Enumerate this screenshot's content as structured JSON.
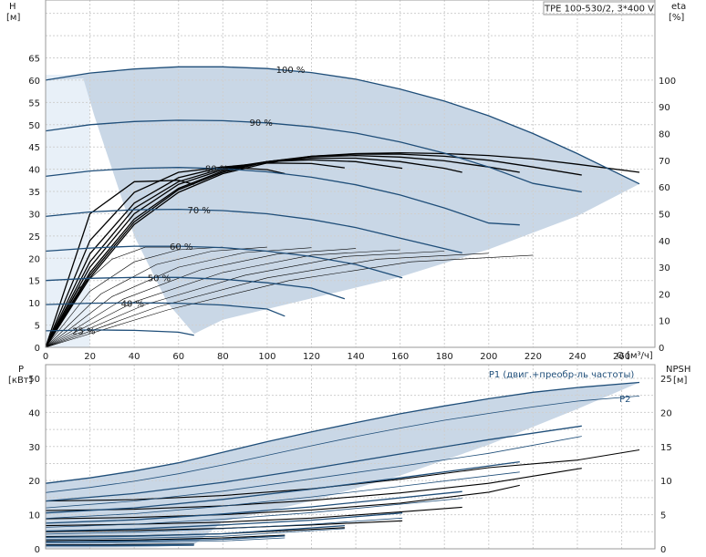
{
  "chart_data": [
    {
      "type": "line",
      "title": "TPE 100-530/2, 3*400 V",
      "xlabel": "Q [м³/ч]",
      "ylabel": "H\n[м]",
      "ylabel_right": "eta\n[%]",
      "xlim": [
        0,
        275
      ],
      "ylim": [
        0,
        78
      ],
      "y2lim": [
        0,
        130
      ],
      "x_ticks": [
        "0",
        "20",
        "40",
        "60",
        "80",
        "100",
        "120",
        "140",
        "160",
        "180",
        "200",
        "220",
        "240",
        "260"
      ],
      "y_ticks": [
        "0",
        "5",
        "10",
        "15",
        "20",
        "25",
        "30",
        "35",
        "40",
        "45",
        "50",
        "55",
        "60",
        "65"
      ],
      "y2_ticks": [
        "0",
        "10",
        "20",
        "30",
        "40",
        "50",
        "60",
        "70",
        "80",
        "90",
        "100"
      ],
      "grid": true,
      "operating_area": {
        "upper_x": [
          0,
          20,
          40,
          60,
          80,
          100,
          120,
          140,
          160,
          180,
          200,
          220,
          240,
          268
        ],
        "upper_y": [
          60,
          61.6,
          62.5,
          63.0,
          63.0,
          62.6,
          61.7,
          60.2,
          58.0,
          55.3,
          52.0,
          48.0,
          43.5,
          36.7
        ],
        "lower_x": [
          268,
          240,
          200,
          160,
          120,
          100,
          80,
          67,
          55,
          40,
          30,
          22,
          17
        ],
        "lower_y": [
          36.7,
          29.5,
          22.0,
          15.8,
          11.0,
          8.6,
          6.2,
          3.0,
          10.0,
          25.0,
          40.0,
          52.0,
          60.4
        ]
      },
      "head_curves": [
        {
          "name": "100 %",
          "label_x": 104,
          "x": [
            0,
            20,
            40,
            60,
            80,
            100,
            120,
            140,
            160,
            180,
            200,
            220,
            240,
            268
          ],
          "y": [
            60.0,
            61.6,
            62.5,
            63.0,
            63.0,
            62.6,
            61.7,
            60.2,
            58.0,
            55.3,
            52.0,
            48.0,
            43.5,
            36.7
          ]
        },
        {
          "name": "90 %",
          "label_x": 92,
          "x": [
            0,
            20,
            40,
            60,
            80,
            100,
            120,
            140,
            160,
            180,
            200,
            220,
            242
          ],
          "y": [
            48.6,
            50.0,
            50.7,
            51.0,
            50.9,
            50.4,
            49.5,
            48.1,
            46.1,
            43.6,
            40.5,
            36.8,
            34.9
          ]
        },
        {
          "name": "80 %",
          "label_x": 72,
          "x": [
            0,
            20,
            40,
            60,
            80,
            100,
            120,
            140,
            160,
            180,
            200,
            214
          ],
          "y": [
            38.4,
            39.6,
            40.2,
            40.4,
            40.1,
            39.4,
            38.2,
            36.5,
            34.2,
            31.3,
            27.9,
            27.5
          ]
        },
        {
          "name": "70 %",
          "label_x": 64,
          "x": [
            0,
            20,
            40,
            60,
            80,
            100,
            120,
            140,
            160,
            188
          ],
          "y": [
            29.4,
            30.4,
            30.9,
            31.0,
            30.7,
            30.0,
            28.7,
            26.9,
            24.5,
            21.2
          ]
        },
        {
          "name": "60 %",
          "label_x": 56,
          "x": [
            0,
            20,
            40,
            60,
            80,
            100,
            120,
            140,
            161
          ],
          "y": [
            21.6,
            22.3,
            22.7,
            22.7,
            22.4,
            21.6,
            20.4,
            18.6,
            15.6
          ]
        },
        {
          "name": "50 %",
          "label_x": 46,
          "x": [
            0,
            20,
            40,
            60,
            80,
            100,
            120,
            135
          ],
          "y": [
            15.0,
            15.5,
            15.7,
            15.7,
            15.3,
            14.5,
            13.3,
            10.9
          ]
        },
        {
          "name": "40 %",
          "label_x": 34,
          "x": [
            0,
            20,
            40,
            60,
            80,
            100,
            108
          ],
          "y": [
            9.6,
            9.9,
            10.0,
            9.9,
            9.5,
            8.6,
            7.0
          ]
        },
        {
          "name": "25 %",
          "label_x": 12,
          "x": [
            0,
            20,
            40,
            60,
            67
          ],
          "y": [
            3.7,
            3.9,
            3.8,
            3.4,
            2.7
          ]
        }
      ],
      "efficiency_curves": [
        {
          "x": [
            0,
            20,
            40,
            60,
            80,
            100,
            120,
            140,
            160,
            180,
            200,
            220,
            240,
            268
          ],
          "y": [
            0,
            26,
            46,
            58,
            65,
            69,
            71.5,
            72.5,
            72.8,
            72.5,
            71.8,
            70.5,
            68.5,
            65.5
          ]
        },
        {
          "x": [
            0,
            20,
            40,
            60,
            80,
            100,
            120,
            140,
            160,
            180,
            200,
            220,
            242
          ],
          "y": [
            0,
            27,
            47,
            59,
            65.5,
            69.5,
            71.5,
            72.3,
            72.3,
            71.5,
            70.0,
            67.5,
            64.5
          ]
        },
        {
          "x": [
            0,
            20,
            40,
            60,
            80,
            100,
            120,
            140,
            160,
            180,
            200,
            214
          ],
          "y": [
            0,
            28,
            48,
            59.5,
            66,
            69.5,
            71.3,
            71.8,
            71.2,
            69.8,
            67.5,
            65.5
          ]
        },
        {
          "x": [
            0,
            20,
            40,
            60,
            80,
            100,
            120,
            140,
            160,
            180,
            188
          ],
          "y": [
            0,
            30,
            50,
            61,
            66.5,
            69.5,
            70.8,
            70.8,
            69.5,
            67.0,
            65.5
          ]
        },
        {
          "x": [
            0,
            20,
            40,
            60,
            80,
            100,
            120,
            140,
            161
          ],
          "y": [
            0,
            32,
            52,
            62,
            67,
            69.5,
            70.2,
            69.5,
            67.0
          ]
        },
        {
          "x": [
            0,
            20,
            40,
            60,
            80,
            100,
            120,
            135
          ],
          "y": [
            0,
            35,
            54,
            63.5,
            67.5,
            69,
            68.8,
            67.2
          ]
        },
        {
          "x": [
            0,
            20,
            40,
            60,
            80,
            100,
            108
          ],
          "y": [
            0,
            40,
            58,
            65.5,
            67.5,
            66.5,
            65.0
          ]
        },
        {
          "x": [
            0,
            20,
            40,
            60,
            67
          ],
          "y": [
            0,
            50,
            62,
            62.5,
            61.0
          ]
        }
      ],
      "system_curves": [
        {
          "x": [
            0,
            15,
            30,
            45,
            60
          ],
          "y": [
            0,
            22,
            33,
            37.5,
            37.5
          ]
        },
        {
          "x": [
            0,
            20,
            40,
            60,
            80
          ],
          "y": [
            0,
            21,
            32,
            36.5,
            37.5
          ]
        },
        {
          "x": [
            0,
            25,
            50,
            75,
            100
          ],
          "y": [
            0,
            20,
            31,
            36,
            37.5
          ]
        },
        {
          "x": [
            0,
            30,
            60,
            90,
            120
          ],
          "y": [
            0,
            19,
            30,
            35.5,
            37.3
          ]
        },
        {
          "x": [
            0,
            35,
            70,
            105,
            140
          ],
          "y": [
            0,
            18,
            29,
            35,
            37
          ]
        },
        {
          "x": [
            0,
            40,
            80,
            120,
            160
          ],
          "y": [
            0,
            17,
            28,
            34.5,
            36.5
          ]
        },
        {
          "x": [
            0,
            45,
            90,
            135,
            180
          ],
          "y": [
            0,
            16,
            27,
            34,
            36
          ]
        },
        {
          "x": [
            0,
            50,
            100,
            150,
            200
          ],
          "y": [
            0,
            15,
            26,
            33,
            35.2
          ]
        },
        {
          "x": [
            0,
            55,
            110,
            165,
            220
          ],
          "y": [
            0,
            14,
            25,
            32,
            34.5
          ]
        }
      ]
    },
    {
      "type": "line",
      "xlabel": "",
      "ylabel": "P\n[кВт]",
      "ylabel_right": "NPSH\n[м]",
      "xlim": [
        0,
        275
      ],
      "ylim": [
        0,
        54
      ],
      "y2lim": [
        0,
        27
      ],
      "y_ticks": [
        "0",
        "10",
        "20",
        "30",
        "40",
        "50"
      ],
      "y2_ticks": [
        "0",
        "5",
        "10",
        "15",
        "20",
        "25"
      ],
      "grid": true,
      "series_labels": [
        {
          "text": "P1 (двиг.+преобр-ль частоты)",
          "x": 200,
          "y": 50.2
        },
        {
          "text": "P2",
          "x": 259,
          "y": 43.0
        }
      ],
      "operating_area": {
        "upper_x": [
          0,
          20,
          40,
          60,
          80,
          100,
          120,
          140,
          160,
          180,
          200,
          220,
          240,
          268
        ],
        "upper_y": [
          19.2,
          20.8,
          22.8,
          25.2,
          28.3,
          31.4,
          34.3,
          37.0,
          39.6,
          41.9,
          44.0,
          45.9,
          47.3,
          48.8
        ],
        "lower_x": [
          268,
          240,
          200,
          160,
          120,
          80,
          67,
          50,
          20,
          0
        ],
        "lower_y": [
          48.8,
          41.0,
          30.5,
          21.5,
          14.0,
          8.0,
          1.2,
          0.5,
          0.3,
          0.3
        ]
      },
      "p1_curves": [
        {
          "x": [
            0,
            20,
            40,
            60,
            80,
            100,
            120,
            140,
            160,
            180,
            200,
            220,
            240,
            268
          ],
          "y": [
            19.2,
            20.8,
            22.8,
            25.2,
            28.3,
            31.4,
            34.3,
            37.0,
            39.6,
            41.9,
            44.0,
            45.9,
            47.3,
            48.8
          ]
        },
        {
          "x": [
            0,
            40,
            80,
            120,
            160,
            200,
            242
          ],
          "y": [
            14.0,
            16.2,
            19.5,
            23.5,
            27.8,
            32.0,
            36.0
          ]
        },
        {
          "x": [
            0,
            40,
            80,
            120,
            160,
            214
          ],
          "y": [
            10.5,
            12.0,
            14.5,
            17.5,
            20.8,
            25.5
          ]
        },
        {
          "x": [
            0,
            40,
            80,
            120,
            188
          ],
          "y": [
            7.5,
            8.5,
            10.2,
            12.3,
            16.8
          ]
        },
        {
          "x": [
            0,
            40,
            80,
            120,
            161
          ],
          "y": [
            5.2,
            5.8,
            7.0,
            8.4,
            10.5
          ]
        },
        {
          "x": [
            0,
            40,
            80,
            135
          ],
          "y": [
            3.4,
            3.7,
            4.4,
            6.8
          ]
        },
        {
          "x": [
            0,
            40,
            80,
            108
          ],
          "y": [
            2.1,
            2.3,
            2.8,
            3.8
          ]
        },
        {
          "x": [
            0,
            30,
            67
          ],
          "y": [
            1.0,
            1.0,
            1.3
          ]
        }
      ],
      "p2_curves": [
        {
          "x": [
            0,
            20,
            40,
            60,
            80,
            100,
            120,
            140,
            160,
            180,
            200,
            220,
            240,
            268
          ],
          "y": [
            16.5,
            18.0,
            19.8,
            22.0,
            24.6,
            27.4,
            30.2,
            32.9,
            35.4,
            37.7,
            39.7,
            41.6,
            43.3,
            44.8
          ]
        },
        {
          "x": [
            0,
            40,
            80,
            120,
            160,
            200,
            242
          ],
          "y": [
            12.0,
            14.0,
            16.9,
            20.5,
            24.2,
            28.0,
            33.0
          ]
        },
        {
          "x": [
            0,
            40,
            80,
            120,
            160,
            214
          ],
          "y": [
            8.9,
            10.3,
            12.5,
            15.2,
            18.3,
            22.5
          ]
        },
        {
          "x": [
            0,
            40,
            80,
            120,
            188
          ],
          "y": [
            6.3,
            7.2,
            8.7,
            10.6,
            14.8
          ]
        },
        {
          "x": [
            0,
            40,
            80,
            120,
            161
          ],
          "y": [
            4.3,
            4.9,
            5.9,
            7.2,
            9.0
          ]
        },
        {
          "x": [
            0,
            40,
            80,
            135
          ],
          "y": [
            2.8,
            3.1,
            3.7,
            5.9
          ]
        },
        {
          "x": [
            0,
            40,
            80,
            108
          ],
          "y": [
            1.7,
            1.9,
            2.3,
            3.2
          ]
        },
        {
          "x": [
            0,
            30,
            67
          ],
          "y": [
            0.8,
            0.8,
            1.0
          ]
        }
      ],
      "npsh_curves": [
        {
          "x": [
            0,
            40,
            80,
            120,
            160,
            200,
            240,
            268
          ],
          "y": [
            7.0,
            7.2,
            7.8,
            8.8,
            10.2,
            11.9,
            13.0,
            14.5
          ]
        },
        {
          "x": [
            0,
            40,
            80,
            120,
            160,
            200,
            242
          ],
          "y": [
            5.6,
            5.8,
            6.3,
            7.1,
            8.2,
            9.6,
            11.8
          ]
        },
        {
          "x": [
            0,
            40,
            80,
            120,
            160,
            200,
            214
          ],
          "y": [
            4.4,
            4.6,
            5.0,
            5.7,
            6.7,
            8.3,
            9.3
          ]
        },
        {
          "x": [
            0,
            40,
            80,
            120,
            160,
            188
          ],
          "y": [
            3.4,
            3.6,
            3.9,
            4.5,
            5.4,
            6.1
          ]
        },
        {
          "x": [
            0,
            40,
            80,
            120,
            161
          ],
          "y": [
            2.5,
            2.7,
            3.0,
            3.5,
            4.1
          ]
        },
        {
          "x": [
            0,
            40,
            80,
            135
          ],
          "y": [
            1.8,
            1.9,
            2.2,
            3.1
          ]
        },
        {
          "x": [
            0,
            40,
            80,
            108
          ],
          "y": [
            1.2,
            1.3,
            1.6,
            2.0
          ]
        },
        {
          "x": [
            0,
            30,
            67
          ],
          "y": [
            0.6,
            0.6,
            0.7
          ]
        }
      ]
    }
  ],
  "colors": {
    "curve": "#1f4e79",
    "area": "#c9d7e6",
    "area_light": "#e8f0f8",
    "efficiency": "#000000",
    "frame": "#9a9a9a",
    "grid": "#cfcfcf",
    "text": "#1a1a1a"
  }
}
